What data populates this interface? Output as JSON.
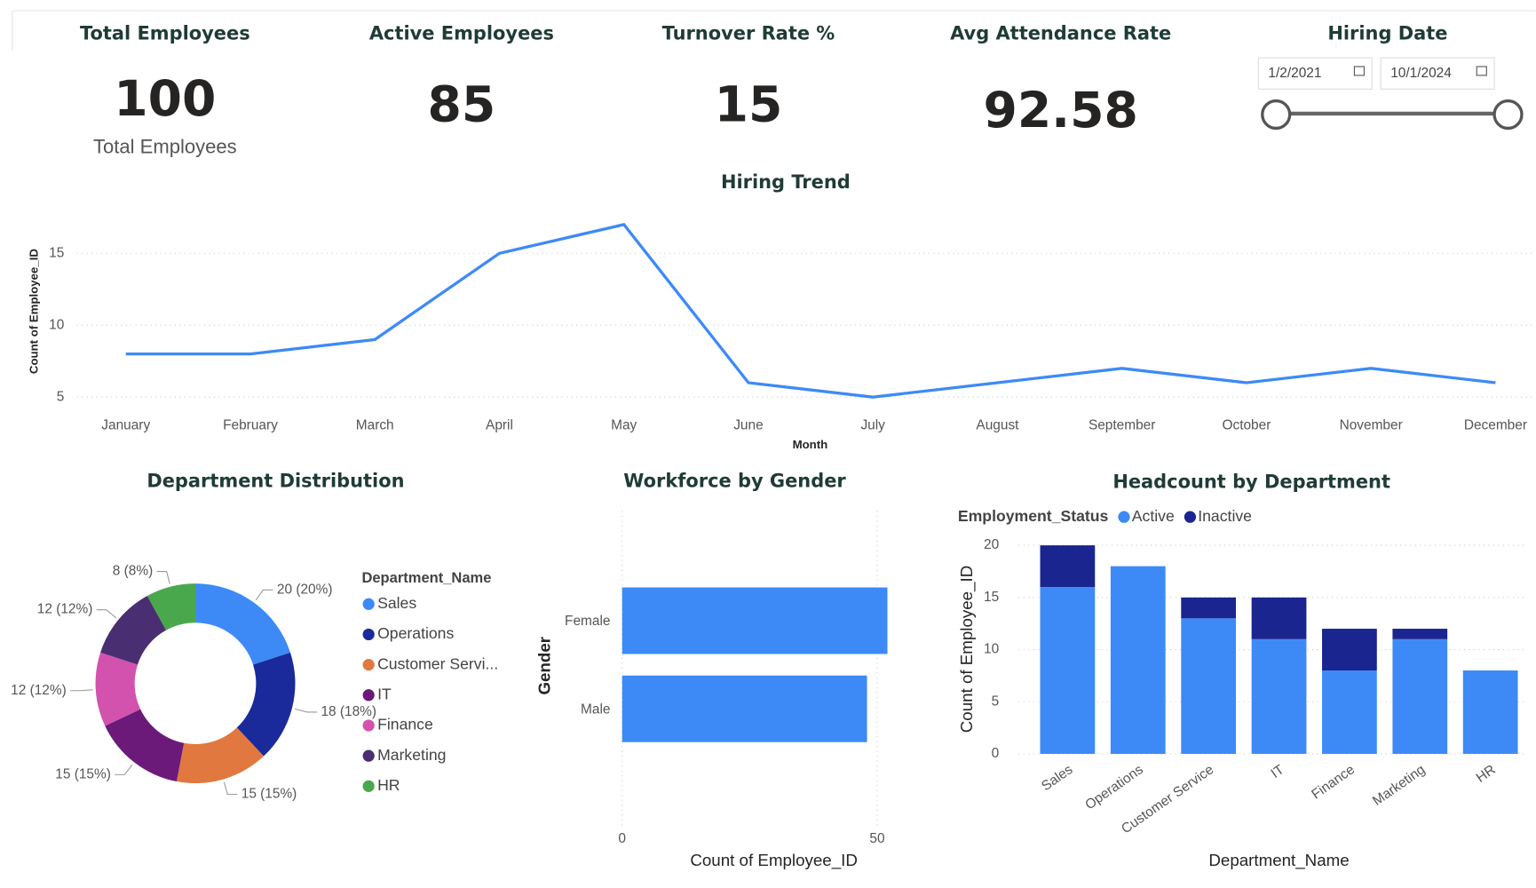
{
  "kpis": [
    {
      "title": "Total Employees",
      "value": 100,
      "subtitle": "Total Employees"
    },
    {
      "title": "Active Employees",
      "value": 85
    },
    {
      "title": "Turnover Rate %",
      "value": 15
    },
    {
      "title": "Avg Attendance Rate",
      "value": 92.58
    }
  ],
  "date_filter": {
    "title": "Hiring Date",
    "start": "1/2/2021",
    "end": "10/1/2024"
  },
  "chart_data": [
    {
      "type": "line",
      "title": "Hiring Trend",
      "x_label": "Month",
      "y_label": "Count of Employee_ID",
      "categories": [
        "January",
        "February",
        "March",
        "April",
        "May",
        "June",
        "July",
        "August",
        "September",
        "October",
        "November",
        "December"
      ],
      "values": [
        8,
        8,
        9,
        15,
        17,
        6,
        5,
        6,
        7,
        6,
        7,
        6
      ],
      "color": "#3d8af7",
      "ylim": [
        4.7,
        17.5
      ],
      "yticks": [
        5,
        10,
        15
      ],
      "grid": true
    },
    {
      "type": "pie",
      "title": "Department Distribution",
      "legend_title": "Department_Name",
      "categories": [
        "Sales",
        "Operations",
        "Customer Service",
        "IT",
        "Finance",
        "Marketing",
        "HR"
      ],
      "legend_labels": [
        "Sales",
        "Operations",
        "Customer Servi...",
        "IT",
        "Finance",
        "Marketing",
        "HR"
      ],
      "values": [
        20,
        18,
        15,
        15,
        12,
        12,
        8
      ],
      "value_labels": [
        "20 (20%)",
        "18 (18%)",
        "15 (15%)",
        "15 (15%)",
        "12 (12%)",
        "12 (12%)",
        "8 (8%)"
      ],
      "colors": [
        "#3d8af7",
        "#1a2a9a",
        "#e07840",
        "#6b1a7a",
        "#d352ae",
        "#4a2e72",
        "#4aa84c"
      ],
      "donut": true
    },
    {
      "type": "hbar",
      "title": "Workforce by Gender",
      "x_label": "Count of Employee_ID",
      "y_label": "Gender",
      "categories": [
        "Female",
        "Male"
      ],
      "values": [
        52,
        48
      ],
      "color": "#3d8af7",
      "xlim": [
        0,
        52
      ],
      "xticks": [
        0,
        50
      ],
      "grid": true
    },
    {
      "type": "stacked_bar",
      "title": "Headcount by Department",
      "legend_title": "Employment_Status",
      "x_label": "Department_Name",
      "y_label": "Count of Employee_ID",
      "categories": [
        "Sales",
        "Operations",
        "Customer Service",
        "IT",
        "Finance",
        "Marketing",
        "HR"
      ],
      "series": [
        {
          "name": "Active",
          "color": "#3d8af7",
          "values": [
            16,
            18,
            13,
            11,
            8,
            11,
            8
          ]
        },
        {
          "name": "Inactive",
          "color": "#1a2590",
          "values": [
            4,
            0,
            2,
            4,
            4,
            1,
            0
          ]
        }
      ],
      "ylim": [
        0,
        20
      ],
      "yticks": [
        0,
        5,
        10,
        15,
        20
      ],
      "grid": true
    }
  ]
}
